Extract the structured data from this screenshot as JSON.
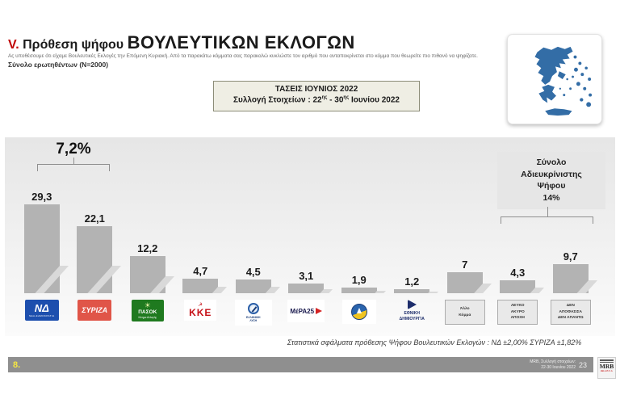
{
  "header": {
    "section_number": "V.",
    "title_prefix": "Πρόθεση ψήφου",
    "title_main": "ΒΟΥΛΕΥΤΙΚΩΝ  ΕΚΛΟΓΩΝ",
    "subtitle": "Ας υποθέσουμε ότι είχαμε Βουλευτικές Εκλογές την Επόμενη Κυριακή. Από τα παρακάτω κόμματα σας παρακαλώ κυκλώστε τον αριθμό που ανταποκρίνεται στο κόμμα που θεωρείτε πιο πιθανό να ψηφίζατε.",
    "sample": "Σύνολο ερωτηθέντων (N=2000)"
  },
  "info_box": {
    "line1": "ΤΑΣΕΙΣ ΙΟΥΝΙΟΣ 2022",
    "line2_prefix": "Συλλογή Στοιχείων : 22",
    "line2_sup1": "ης",
    "line2_mid": " - 30",
    "line2_sup2": "ης",
    "line2_suffix": " Ιουνίου 2022"
  },
  "map": {
    "label": "greece-map",
    "color": "#336da6"
  },
  "chart_data": {
    "type": "bar",
    "title": "Πρόθεση ψήφου Βουλευτικών Εκλογών",
    "unit": "%",
    "ylim": [
      0,
      32
    ],
    "grid": false,
    "bar_color": "#b3b3b3",
    "categories": [
      "ΝΔ",
      "ΣΥΡΙΖΑ",
      "ΠΑΣΟΚ",
      "ΚΚΕ",
      "ΕΛΛΗΝΙΚΗ ΛΥΣΗ",
      "ΜέΡΑ25",
      "ΠΛΕΥΣΗ ΕΛΕΥΘΕΡΙΑΣ",
      "ΕΘΝΙΚΗ ΔΗΜΙΟΥΡΓΙΑ",
      "Άλλο Κόμμα",
      "ΛΕΥΚΟ ΑΚΥΡΟ ΑΠΟΧΗ",
      "ΔΕΝ ΑΠΟΦΑΣΙΣΑ ΔΕΝ ΑΠΑΝΤΩ"
    ],
    "values": [
      29.3,
      22.1,
      12.2,
      4.7,
      4.5,
      3.1,
      1.9,
      1.2,
      7,
      4.3,
      9.7
    ],
    "bars": [
      {
        "party": "ΝΔ",
        "value": 29.3,
        "value_label": "29,3",
        "logo": {
          "kind": "nd",
          "lines": [
            "ΝΔ",
            "ΝΕΑ ΔΗΜΟΚΡΑΤΙΑ"
          ]
        }
      },
      {
        "party": "ΣΥΡΙΖΑ",
        "value": 22.1,
        "value_label": "22,1",
        "logo": {
          "kind": "syriza",
          "lines": [
            "ΣΥΡΙΖΑ"
          ]
        }
      },
      {
        "party": "ΠΑΣΟΚ",
        "value": 12.2,
        "value_label": "12,2",
        "logo": {
          "kind": "pasok",
          "lines": [
            "ΠΑΣΟΚ",
            "Κίνημα Αλλαγής"
          ]
        }
      },
      {
        "party": "ΚΚΕ",
        "value": 4.7,
        "value_label": "4,7",
        "logo": {
          "kind": "kke",
          "lines": [
            "ΚΚΕ"
          ]
        }
      },
      {
        "party": "ΕΛΛΗΝΙΚΗ ΛΥΣΗ",
        "value": 4.5,
        "value_label": "4,5",
        "logo": {
          "kind": "hl",
          "lines": [
            "ΕΛΛΗΝΙΚΗ",
            "ΛΥΣΗ"
          ]
        }
      },
      {
        "party": "ΜέΡΑ25",
        "value": 3.1,
        "value_label": "3,1",
        "logo": {
          "kind": "mera",
          "lines": [
            "ΜέΡΑ25"
          ]
        }
      },
      {
        "party": "ΠΛΕΥΣΗ ΕΛΕΥΘΕΡΙΑΣ",
        "value": 1.9,
        "value_label": "1,9",
        "logo": {
          "kind": "plefsi",
          "lines": []
        }
      },
      {
        "party": "ΕΘΝΙΚΗ ΔΗΜΙΟΥΡΓΙΑ",
        "value": 1.2,
        "value_label": "1,2",
        "logo": {
          "kind": "eth",
          "lines": [
            "ΕΘΝΙΚΗ",
            "ΔΗΜΙΟΥΡΓΙΑ"
          ]
        }
      },
      {
        "party": "Άλλο Κόμμα",
        "value": 7,
        "value_label": "7",
        "logo": {
          "kind": "box",
          "lines": [
            "Άλλο",
            "Κόμμα"
          ]
        }
      },
      {
        "party": "ΛΕΥΚΟ ΑΚΥΡΟ ΑΠΟΧΗ",
        "value": 4.3,
        "value_label": "4,3",
        "logo": {
          "kind": "box",
          "lines": [
            "ΛΕΥΚΟ",
            "ΑΚΥΡΟ",
            "ΑΠΟΧΗ"
          ]
        }
      },
      {
        "party": "ΔΕΝ ΑΠΟΦΑΣΙΣΑ ΔΕΝ ΑΠΑΝΤΩ",
        "value": 9.7,
        "value_label": "9,7",
        "logo": {
          "kind": "box",
          "lines": [
            "ΔΕΝ",
            "ΑΠΟΦΑΣΙΣΑ",
            "ΔΕΝ ΑΠΑΝΤΩ"
          ]
        }
      }
    ],
    "annotations": [
      {
        "type": "difference-bracket",
        "text": "7,2%",
        "between": [
          "ΝΔ",
          "ΣΥΡΙΖΑ"
        ]
      },
      {
        "type": "group-bracket",
        "text": "Σύνολο Αδιευκρίνιστης Ψήφου 14%",
        "lines": [
          "Σύνολο",
          "Αδιευκρίνιστης",
          "Ψήφου",
          "14%"
        ],
        "between": [
          "ΛΕΥΚΟ ΑΚΥΡΟ ΑΠΟΧΗ",
          "ΔΕΝ ΑΠΟΦΑΣΙΣΑ ΔΕΝ ΑΠΑΝΤΩ"
        ]
      }
    ]
  },
  "footnote": "Στατιστικά  σφάλματα πρόθεσης Ψήφου Βουλευτικών Εκλογών : ΝΔ ±2,00% ΣΥΡΙΖΑ ±1,82%",
  "footer": {
    "page_number": "8.",
    "credit_line1": "MRB, Συλλογή στοιχείων:",
    "credit_line2": "22-30 Ιουνίου 2022",
    "slide_number": "23",
    "logo_text": "MRB",
    "logo_sub": "HELLAS S.A."
  }
}
